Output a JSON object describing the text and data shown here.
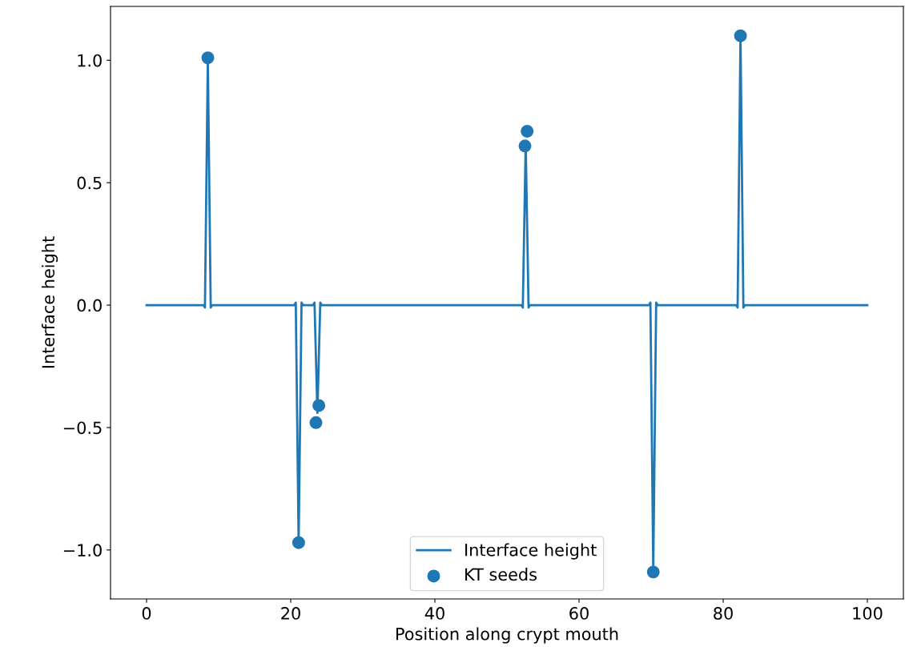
{
  "chart_data": {
    "type": "line",
    "xlabel": "Position along crypt mouth",
    "ylabel": "Interface height",
    "xlim": [
      -5,
      105
    ],
    "ylim": [
      -1.2,
      1.22
    ],
    "xticks": [
      0,
      20,
      40,
      60,
      80,
      100
    ],
    "yticks": [
      {
        "value": -1.0,
        "label": "−1.0"
      },
      {
        "value": -0.5,
        "label": "−0.5"
      },
      {
        "value": 0.0,
        "label": "0.0"
      },
      {
        "value": 0.5,
        "label": "0.5"
      },
      {
        "value": 1.0,
        "label": "1.0"
      }
    ],
    "grid": false,
    "legend": "bottom",
    "series": [
      {
        "name": "Interface height",
        "color": "#1f77b4",
        "marker": "none",
        "x": [
          0,
          7.9,
          8.1,
          8.5,
          8.9,
          9.1,
          20.5,
          20.7,
          21.1,
          21.5,
          21.7,
          23.1,
          23.3,
          23.7,
          24.1,
          24.3,
          52.0,
          52.2,
          52.6,
          53.0,
          53.2,
          69.7,
          69.9,
          70.3,
          70.7,
          70.9,
          81.8,
          82.0,
          82.4,
          82.8,
          83.0,
          100
        ],
        "values": [
          0,
          0,
          -0.01,
          1.01,
          -0.01,
          0,
          0,
          0.01,
          -0.97,
          0.01,
          0,
          0,
          0.01,
          -0.44,
          0.01,
          0,
          0,
          -0.01,
          0.66,
          -0.01,
          0,
          0,
          0.01,
          -1.08,
          0.01,
          0,
          0,
          -0.01,
          1.1,
          -0.01,
          0,
          0
        ]
      },
      {
        "name": "KT seeds",
        "type": "scatter",
        "color": "#1f77b4",
        "marker": "circle",
        "x": [
          8.5,
          21.1,
          23.5,
          23.9,
          52.5,
          52.8,
          70.3,
          82.4
        ],
        "values": [
          1.01,
          -0.97,
          -0.48,
          -0.41,
          0.65,
          0.71,
          -1.09,
          1.1
        ]
      }
    ]
  }
}
